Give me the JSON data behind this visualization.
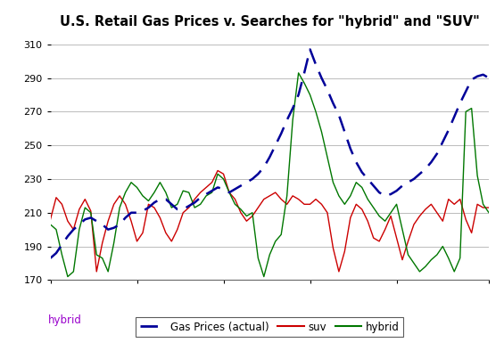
{
  "title": "U.S. Retail Gas Prices v. Searches for \"hybrid\" and \"SUV\"",
  "xlabel_annotation": "hybrid",
  "xlabel_annotation_color": "#9900CC",
  "ylim": [
    170,
    315
  ],
  "yticks": [
    170,
    190,
    210,
    230,
    250,
    270,
    290,
    310
  ],
  "background_color": "#ffffff",
  "grid_color": "#bbbbbb",
  "gas_prices": [
    183,
    186,
    191,
    196,
    200,
    203,
    206,
    207,
    205,
    203,
    200,
    201,
    203,
    207,
    210,
    210,
    211,
    213,
    216,
    218,
    218,
    215,
    212,
    212,
    214,
    216,
    219,
    221,
    223,
    225,
    224,
    222,
    224,
    226,
    228,
    230,
    233,
    237,
    243,
    250,
    257,
    265,
    272,
    280,
    293,
    307,
    298,
    290,
    283,
    275,
    268,
    258,
    248,
    240,
    234,
    230,
    226,
    222,
    220,
    221,
    223,
    226,
    228,
    230,
    233,
    236,
    240,
    245,
    252,
    259,
    267,
    275,
    282,
    289,
    291,
    292,
    290
  ],
  "suv": [
    206,
    219,
    215,
    205,
    200,
    212,
    218,
    211,
    175,
    192,
    205,
    215,
    220,
    215,
    205,
    193,
    198,
    215,
    213,
    207,
    198,
    193,
    200,
    210,
    213,
    218,
    222,
    225,
    228,
    235,
    233,
    222,
    218,
    210,
    205,
    208,
    213,
    218,
    220,
    222,
    218,
    215,
    220,
    218,
    215,
    215,
    218,
    215,
    210,
    189,
    175,
    187,
    207,
    215,
    212,
    205,
    195,
    193,
    200,
    208,
    195,
    182,
    193,
    203,
    208,
    212,
    215,
    210,
    205,
    218,
    215,
    218,
    206,
    198,
    215,
    213,
    213
  ],
  "hybrid": [
    203,
    200,
    185,
    172,
    175,
    200,
    213,
    210,
    185,
    183,
    175,
    192,
    213,
    222,
    228,
    225,
    220,
    217,
    222,
    228,
    222,
    213,
    215,
    223,
    222,
    213,
    215,
    220,
    222,
    233,
    230,
    222,
    215,
    212,
    208,
    210,
    183,
    172,
    185,
    193,
    197,
    220,
    265,
    293,
    287,
    280,
    270,
    258,
    243,
    228,
    220,
    215,
    220,
    228,
    225,
    218,
    213,
    208,
    205,
    210,
    215,
    200,
    185,
    180,
    175,
    178,
    182,
    185,
    190,
    183,
    175,
    183,
    270,
    272,
    232,
    215,
    210
  ],
  "gas_color": "#000099",
  "suv_color": "#cc0000",
  "hybrid_color": "#007700",
  "legend_labels": [
    "Gas Prices (actual)",
    "suv",
    "hybrid"
  ]
}
